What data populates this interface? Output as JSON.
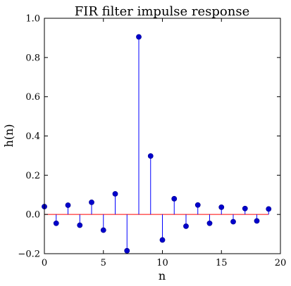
{
  "chart_data": {
    "type": "stem",
    "title": "FIR filter impulse response",
    "xlabel": "n",
    "ylabel": "h(n)",
    "xlim": [
      0,
      20
    ],
    "ylim": [
      -0.2,
      1.0
    ],
    "xticks": [
      "0",
      "5",
      "10",
      "15",
      "20"
    ],
    "yticks": [
      "−0.2",
      "0.0",
      "0.2",
      "0.4",
      "0.6",
      "0.8",
      "1.0"
    ],
    "x": [
      0,
      1,
      2,
      3,
      4,
      5,
      6,
      7,
      8,
      9,
      10,
      11,
      12,
      13,
      14,
      15,
      16,
      17,
      18,
      19
    ],
    "values": [
      0.04,
      -0.045,
      0.047,
      -0.055,
      0.062,
      -0.08,
      0.105,
      -0.185,
      0.905,
      0.298,
      -0.13,
      0.08,
      -0.06,
      0.048,
      -0.045,
      0.037,
      -0.037,
      0.03,
      -0.033,
      0.028
    ],
    "grid": false,
    "stem_color": "#0000ff",
    "marker_color": "#0000cc",
    "baseline_color": "#ff0000"
  }
}
